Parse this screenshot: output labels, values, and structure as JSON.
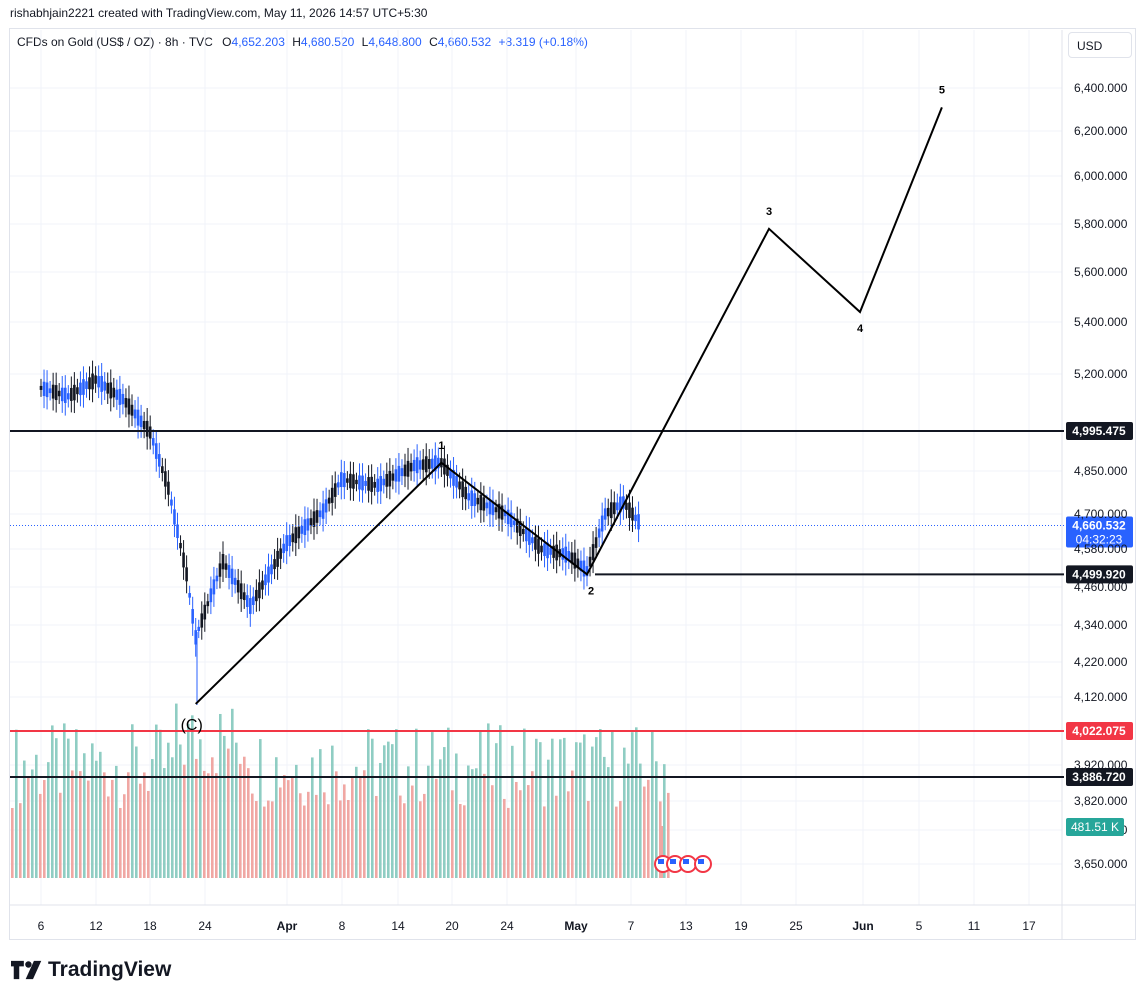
{
  "header": {
    "credit": "rishabhjain2221 created with TradingView.com, May 11, 2026 14:57 UTC+5:30"
  },
  "legend": {
    "symbol": "CFDs on Gold (US$ / OZ) · 8h · TVC",
    "o_label": "O",
    "o_value": "4,652.203",
    "h_label": "H",
    "h_value": "4,680.520",
    "l_label": "L",
    "l_value": "4,648.800",
    "c_label": "C",
    "c_value": "4,660.532",
    "change": "+8.319 (+0.18%)"
  },
  "currency_button": "USD",
  "brand": {
    "name": "TradingView",
    "icon": "tradingview-logo-icon"
  },
  "colors": {
    "up": "#26a69a",
    "down": "#131722",
    "up_candle": "#2962ff",
    "vol_up": "#8fcdc3",
    "vol_down": "#f0a7a3",
    "red_level": "#f23645",
    "accent": "#2962ff"
  },
  "chart_data": {
    "type": "candlestick",
    "y_tick_labels": [
      "6,400.000",
      "6,200.000",
      "6,000.000",
      "5,800.000",
      "5,600.000",
      "5,400.000",
      "5,200.000",
      "4,995.475",
      "4,850.000",
      "4,700.000",
      "4,580.000",
      "4,460.000",
      "4,340.000",
      "4,220.000",
      "4,120.000",
      "4,022.075",
      "3,920.000",
      "3,820.000",
      "3,740.000",
      "3,650.000"
    ],
    "y_tick_values": [
      6400,
      6200,
      6000,
      5800,
      5600,
      5400,
      5200,
      4995.475,
      4850,
      4700,
      4580,
      4460,
      4340,
      4220,
      4120,
      4022.075,
      3920,
      3820,
      3740,
      3650
    ],
    "x_tick_labels": [
      "6",
      "12",
      "18",
      "24",
      "Apr",
      "8",
      "14",
      "20",
      "24",
      "May",
      "7",
      "13",
      "19",
      "25",
      "Jun",
      "5",
      "11",
      "17"
    ],
    "horizontal_levels": [
      {
        "label": "4,995.475",
        "value": 4995.475,
        "color": "#131722"
      },
      {
        "label": "4,499.920",
        "value": 4499.92,
        "color": "#131722"
      },
      {
        "label": "4,022.075",
        "value": 4022.075,
        "color": "#f23645"
      },
      {
        "label": "3,886.720",
        "value": 3886.72,
        "color": "#131722"
      }
    ],
    "last_price": {
      "label": "4,660.532",
      "value": 4660.532,
      "countdown": "04:32:23"
    },
    "volume_label": "481.51 K",
    "wave_labels": [
      {
        "label": "(C)",
        "x": "Mar 23",
        "y": 4100
      },
      {
        "label": "1",
        "x": "Apr 19",
        "y": 4880
      },
      {
        "label": "2",
        "x": "May 5",
        "y": 4500
      },
      {
        "label": "3",
        "x": "May 25",
        "y": 5780
      },
      {
        "label": "4",
        "x": "Jun 4",
        "y": 5440
      },
      {
        "label": "5",
        "x": "Jun 13",
        "y": 6310
      }
    ],
    "close_series": [
      {
        "x": "Mar 6",
        "y": 5150
      },
      {
        "x": "Mar 9",
        "y": 5120
      },
      {
        "x": "Mar 12",
        "y": 5180
      },
      {
        "x": "Mar 15",
        "y": 5110
      },
      {
        "x": "Mar 18",
        "y": 4990
      },
      {
        "x": "Mar 20",
        "y": 4790
      },
      {
        "x": "Mar 22",
        "y": 4500
      },
      {
        "x": "Mar 23",
        "y": 4300
      },
      {
        "x": "Mar 26",
        "y": 4540
      },
      {
        "x": "Mar 29",
        "y": 4400
      },
      {
        "x": "Apr 2",
        "y": 4600
      },
      {
        "x": "Apr 6",
        "y": 4710
      },
      {
        "x": "Apr 8",
        "y": 4820
      },
      {
        "x": "Apr 12",
        "y": 4800
      },
      {
        "x": "Apr 16",
        "y": 4870
      },
      {
        "x": "Apr 19",
        "y": 4880
      },
      {
        "x": "Apr 22",
        "y": 4760
      },
      {
        "x": "Apr 26",
        "y": 4700
      },
      {
        "x": "Apr 30",
        "y": 4580
      },
      {
        "x": "May 3",
        "y": 4560
      },
      {
        "x": "May 5",
        "y": 4510
      },
      {
        "x": "May 7",
        "y": 4700
      },
      {
        "x": "May 9",
        "y": 4740
      },
      {
        "x": "May 11",
        "y": 4660
      }
    ]
  }
}
